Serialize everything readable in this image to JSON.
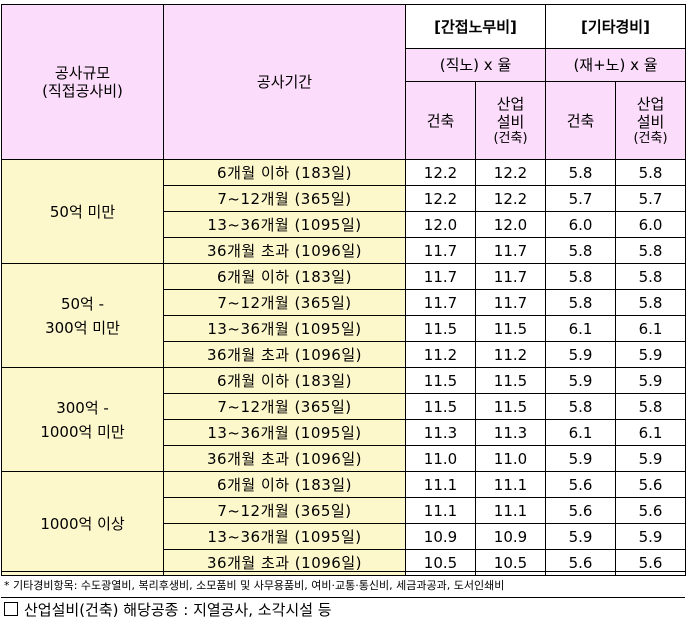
{
  "header": {
    "scale_line1": "공사규모",
    "scale_line2": "(직접공사비)",
    "period": "공사기간",
    "indirect_title": "[간접노무비]",
    "indirect_formula": "(직노) x 율",
    "other_title": "[기타경비]",
    "other_formula": "(재+노) x 율",
    "col_building": "건축",
    "col_industrial_1": "산업",
    "col_industrial_2": "설비",
    "col_industrial_3": "(건축)"
  },
  "groups": [
    {
      "scale_lines": [
        "50억 미만"
      ],
      "rows": [
        {
          "period": "6개월 이하 (183일)",
          "ind_bld": "12.2",
          "ind_ind": "12.2",
          "oth_bld": "5.8",
          "oth_ind": "5.8"
        },
        {
          "period": "7~12개월 (365일)",
          "ind_bld": "12.2",
          "ind_ind": "12.2",
          "oth_bld": "5.7",
          "oth_ind": "5.7"
        },
        {
          "period": "13~36개월 (1095일)",
          "ind_bld": "12.0",
          "ind_ind": "12.0",
          "oth_bld": "6.0",
          "oth_ind": "6.0"
        },
        {
          "period": "36개월 초과 (1096일)",
          "ind_bld": "11.7",
          "ind_ind": "11.7",
          "oth_bld": "5.8",
          "oth_ind": "5.8"
        }
      ]
    },
    {
      "scale_lines": [
        "50억 -",
        "300억 미만"
      ],
      "rows": [
        {
          "period": "6개월 이하 (183일)",
          "ind_bld": "11.7",
          "ind_ind": "11.7",
          "oth_bld": "5.8",
          "oth_ind": "5.8"
        },
        {
          "period": "7~12개월 (365일)",
          "ind_bld": "11.7",
          "ind_ind": "11.7",
          "oth_bld": "5.8",
          "oth_ind": "5.8"
        },
        {
          "period": "13~36개월 (1095일)",
          "ind_bld": "11.5",
          "ind_ind": "11.5",
          "oth_bld": "6.1",
          "oth_ind": "6.1"
        },
        {
          "period": "36개월 초과 (1096일)",
          "ind_bld": "11.2",
          "ind_ind": "11.2",
          "oth_bld": "5.9",
          "oth_ind": "5.9"
        }
      ]
    },
    {
      "scale_lines": [
        "300억 -",
        "1000억 미만"
      ],
      "rows": [
        {
          "period": "6개월 이하 (183일)",
          "ind_bld": "11.5",
          "ind_ind": "11.5",
          "oth_bld": "5.9",
          "oth_ind": "5.9"
        },
        {
          "period": "7~12개월 (365일)",
          "ind_bld": "11.5",
          "ind_ind": "11.5",
          "oth_bld": "5.8",
          "oth_ind": "5.8"
        },
        {
          "period": "13~36개월 (1095일)",
          "ind_bld": "11.3",
          "ind_ind": "11.3",
          "oth_bld": "6.1",
          "oth_ind": "6.1"
        },
        {
          "period": "36개월 초과 (1096일)",
          "ind_bld": "11.0",
          "ind_ind": "11.0",
          "oth_bld": "5.9",
          "oth_ind": "5.9"
        }
      ]
    },
    {
      "scale_lines": [
        "1000억 이상"
      ],
      "rows": [
        {
          "period": "6개월 이하 (183일)",
          "ind_bld": "11.1",
          "ind_ind": "11.1",
          "oth_bld": "5.6",
          "oth_ind": "5.6"
        },
        {
          "period": "7~12개월 (365일)",
          "ind_bld": "11.1",
          "ind_ind": "11.1",
          "oth_bld": "5.6",
          "oth_ind": "5.6"
        },
        {
          "period": "13~36개월 (1095일)",
          "ind_bld": "10.9",
          "ind_ind": "10.9",
          "oth_bld": "5.9",
          "oth_ind": "5.9"
        },
        {
          "period": "36개월 초과 (1096일)",
          "ind_bld": "10.5",
          "ind_ind": "10.5",
          "oth_bld": "5.6",
          "oth_ind": "5.6"
        }
      ]
    }
  ],
  "footnote_items": "* 기타경비항목: 수도광열비, 복리후생비, 소모품비 및 사무용품비, 여비·교통·통신비, 세금과공과, 도서인쇄비",
  "footnote_industrial": "산업설비(건축) 해당공종 : 지열공사, 소각시설 등",
  "colors": {
    "header_bg": "#fbdcfa",
    "scale_bg": "#fdf8cc",
    "period_bg": "#fdf8cc"
  },
  "icons": {
    "checkbox": "empty-square-icon"
  }
}
